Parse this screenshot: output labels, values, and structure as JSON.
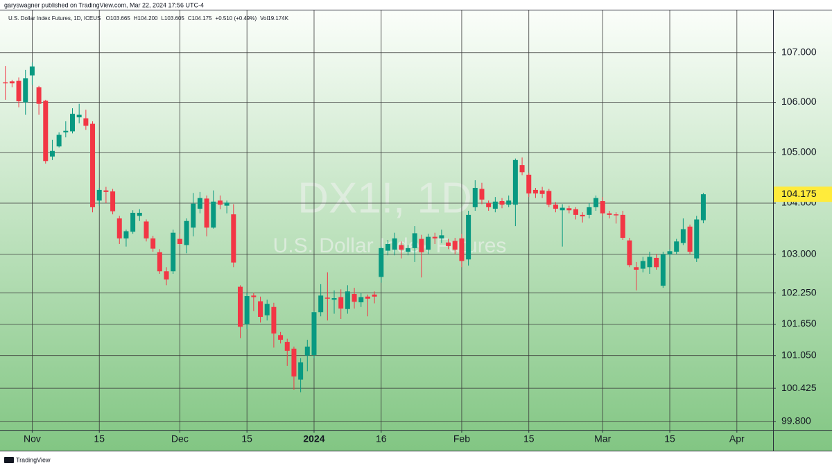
{
  "header": {
    "attribution": "garyswagner published on TradingView.com, Mar 22, 2024 17:56 UTC-4"
  },
  "chart_data": {
    "type": "candlestick",
    "title": "U.S. Dollar Index Futures, 1D, ICEUS",
    "legend_values": [
      "O103.665",
      "H104.200",
      "L103.605",
      "C104.175",
      "+0.510 (+0.49%)",
      "Vol19.174K"
    ],
    "watermark": "DX1!, 1D",
    "watermark_subtitle": "U.S. Dollar Index Futures",
    "up_color": "#089981",
    "down_color": "#f23645",
    "log_scale": true,
    "grid": true,
    "ylim": [
      99.64,
      107.87
    ],
    "yticks": [
      {
        "value": 99.8,
        "label": "99.800"
      },
      {
        "value": 100.425,
        "label": "100.425"
      },
      {
        "value": 101.05,
        "label": "101.050"
      },
      {
        "value": 101.65,
        "label": "101.650"
      },
      {
        "value": 102.25,
        "label": "102.250"
      },
      {
        "value": 103,
        "label": "103.000"
      },
      {
        "value": 104,
        "label": "104.000"
      },
      {
        "value": 105,
        "label": "105.000"
      },
      {
        "value": 106,
        "label": "106.000"
      },
      {
        "value": 107,
        "label": "107.000"
      }
    ],
    "categories": [
      null,
      null,
      null,
      null,
      "Nov",
      null,
      null,
      null,
      null,
      null,
      null,
      null,
      null,
      null,
      "15",
      null,
      null,
      null,
      null,
      null,
      null,
      null,
      null,
      null,
      null,
      null,
      "Dec",
      null,
      null,
      null,
      null,
      null,
      null,
      null,
      null,
      null,
      "15",
      null,
      null,
      null,
      null,
      null,
      null,
      null,
      null,
      null,
      "2024",
      null,
      null,
      null,
      null,
      null,
      null,
      null,
      null,
      null,
      "16",
      null,
      null,
      null,
      null,
      null,
      null,
      null,
      null,
      null,
      null,
      null,
      "Feb",
      null,
      null,
      null,
      null,
      null,
      null,
      null,
      null,
      null,
      "15",
      null,
      null,
      null,
      null,
      null,
      null,
      null,
      null,
      null,
      null,
      "Mar",
      null,
      null,
      null,
      null,
      null,
      null,
      null,
      null,
      null,
      "15",
      null,
      null,
      null,
      null,
      null,
      null,
      null,
      null,
      null,
      "Apr"
    ],
    "open": [
      106.4,
      106.42,
      106.43,
      106.0,
      106.54,
      106.3,
      106.03,
      104.92,
      105.12,
      105.4,
      105.42,
      105.7,
      105.68,
      105.57,
      104.05,
      104.25,
      104.23,
      103.7,
      103.31,
      103.44,
      103.75,
      103.64,
      103.31,
      103.04,
      102.67,
      102.67,
      103.3,
      103.18,
      103.52,
      103.89,
      104.09,
      103.52,
      104.05,
      103.95,
      103.78,
      102.37,
      101.65,
      102.2,
      102.09,
      101.82,
      101.98,
      101.44,
      101.31,
      101.18,
      100.59,
      101.05,
      101.06,
      101.88,
      102.16,
      102.12,
      102.17,
      101.94,
      102.23,
      102.07,
      102.18,
      102.22,
      102.56,
      103.07,
      103.09,
      103.18,
      103.05,
      103.12,
      103.3,
      103.09,
      103.34,
      103.31,
      103.23,
      103.26,
      103.31,
      102.9,
      103.92,
      104.28,
      104.0,
      103.89,
      104.04,
      103.97,
      103.97,
      104.75,
      104.56,
      104.26,
      104.25,
      104.24,
      103.97,
      103.86,
      103.9,
      103.88,
      103.77,
      103.77,
      103.92,
      104.04,
      103.8,
      103.78,
      103.77,
      103.27,
      102.75,
      102.72,
      102.75,
      102.93,
      102.39,
      103.0,
      103.05,
      103.22,
      103.54,
      102.92,
      103.665,
      null,
      null,
      null,
      null,
      null
    ],
    "high": [
      106.73,
      106.45,
      106.5,
      106.65,
      106.8,
      106.33,
      106.05,
      105.25,
      105.4,
      105.62,
      105.88,
      105.97,
      105.85,
      105.62,
      104.3,
      104.32,
      104.28,
      103.75,
      103.48,
      103.86,
      103.88,
      103.68,
      103.36,
      103.1,
      102.75,
      103.48,
      103.4,
      103.7,
      104.2,
      104.22,
      104.15,
      104.25,
      104.15,
      104.05,
      103.98,
      102.4,
      102.25,
      102.25,
      102.18,
      102.12,
      102.06,
      101.5,
      101.37,
      101.22,
      101.0,
      101.35,
      101.9,
      102.42,
      102.65,
      102.3,
      102.32,
      102.4,
      102.35,
      102.25,
      102.22,
      102.28,
      103.15,
      103.28,
      103.42,
      103.25,
      103.18,
      103.55,
      103.38,
      103.4,
      103.42,
      103.48,
      103.3,
      103.32,
      103.4,
      103.85,
      104.45,
      104.4,
      104.05,
      104.12,
      104.1,
      104.15,
      104.88,
      104.9,
      104.6,
      104.3,
      104.32,
      104.28,
      104.02,
      103.98,
      103.95,
      103.92,
      103.82,
      104.0,
      104.15,
      104.12,
      103.85,
      103.82,
      103.85,
      103.32,
      102.85,
      102.95,
      103.05,
      103.0,
      103.05,
      103.1,
      103.3,
      103.7,
      103.58,
      103.75,
      104.2,
      null,
      null,
      null,
      null,
      null
    ],
    "low": [
      106.05,
      106.3,
      105.9,
      105.75,
      106.35,
      105.75,
      104.78,
      104.85,
      105.1,
      105.3,
      105.38,
      105.58,
      105.45,
      103.82,
      103.95,
      104.0,
      103.78,
      103.2,
      103.15,
      103.4,
      103.65,
      103.25,
      103.05,
      102.62,
      102.4,
      102.62,
      103.18,
      103.02,
      103.35,
      103.8,
      103.35,
      103.5,
      103.88,
      103.8,
      102.75,
      101.38,
      101.55,
      101.9,
      101.68,
      101.72,
      101.2,
      101.28,
      100.85,
      100.4,
      100.35,
      100.75,
      101.0,
      101.8,
      101.72,
      101.85,
      101.75,
      101.85,
      101.95,
      101.98,
      101.8,
      102.05,
      102.45,
      102.98,
      102.98,
      102.92,
      102.98,
      102.85,
      102.55,
      103.0,
      103.2,
      103.22,
      103.1,
      103.0,
      102.75,
      102.78,
      103.85,
      103.98,
      103.85,
      103.82,
      103.9,
      103.92,
      103.55,
      104.55,
      104.12,
      104.1,
      104.1,
      103.92,
      103.82,
      103.15,
      103.8,
      103.68,
      103.62,
      103.7,
      103.85,
      103.75,
      103.7,
      103.6,
      103.28,
      102.75,
      102.3,
      102.65,
      102.62,
      102.7,
      102.35,
      102.95,
      103.0,
      103.18,
      103.0,
      102.85,
      103.605,
      null,
      null,
      null,
      null,
      null
    ],
    "close": [
      106.38,
      106.38,
      106.02,
      106.48,
      106.72,
      105.97,
      104.83,
      105.03,
      105.35,
      105.43,
      105.77,
      105.75,
      105.53,
      103.92,
      104.26,
      104.22,
      103.84,
      103.31,
      103.45,
      103.81,
      103.81,
      103.31,
      103.11,
      102.67,
      102.51,
      103.42,
      103.2,
      103.65,
      103.99,
      104.1,
      103.52,
      104.03,
      103.97,
      104.01,
      102.84,
      101.6,
      102.19,
      102.17,
      101.79,
      102.04,
      101.47,
      101.35,
      101.14,
      100.65,
      100.92,
      101.22,
      101.88,
      102.2,
      102.14,
      102.15,
      101.95,
      102.28,
      102.08,
      102.17,
      102.14,
      102.18,
      103.12,
      103.2,
      103.31,
      103.09,
      103.12,
      103.41,
      103.04,
      103.34,
      103.31,
      103.37,
      103.16,
      103.09,
      102.87,
      103.77,
      104.3,
      104.07,
      103.92,
      104.03,
      103.97,
      104.05,
      104.85,
      104.61,
      104.19,
      104.19,
      104.18,
      103.97,
      103.89,
      103.91,
      103.86,
      103.77,
      103.74,
      103.92,
      104.1,
      103.8,
      103.77,
      103.76,
      103.32,
      102.79,
      102.7,
      102.87,
      102.95,
      102.75,
      103.0,
      103.06,
      103.25,
      103.49,
      103.05,
      103.68,
      104.175,
      null,
      null,
      null,
      null,
      null
    ]
  },
  "footer": {
    "brand": "TradingView"
  }
}
